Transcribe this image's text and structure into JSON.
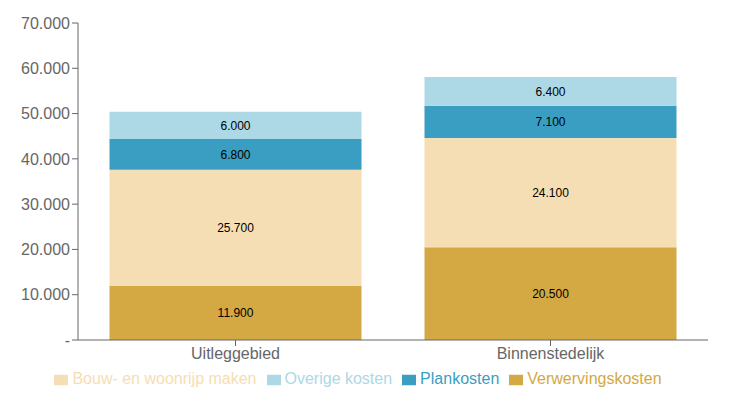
{
  "chart_data": {
    "type": "bar",
    "stacked": true,
    "data_labels": true,
    "grid": false,
    "legend": "bottom",
    "categories": [
      "Uitleggebied",
      "Binnenstedelijk"
    ],
    "series": [
      {
        "name": "Verwervingskosten",
        "color": "#D4A843",
        "values": [
          11900,
          20500
        ],
        "value_labels": [
          "11.900",
          "20.500"
        ]
      },
      {
        "name": "Bouw- en woonrijp maken",
        "color": "#F5DEB3",
        "values": [
          25700,
          24100
        ],
        "value_labels": [
          "25.700",
          "24.100"
        ]
      },
      {
        "name": "Plankosten",
        "color": "#3A9EC2",
        "values": [
          6800,
          7100
        ],
        "value_labels": [
          "6.800",
          "7.100"
        ]
      },
      {
        "name": "Overige kosten",
        "color": "#ADD8E6",
        "values": [
          6000,
          6400
        ],
        "value_labels": [
          "6.000",
          "6.400"
        ]
      }
    ],
    "ylim": [
      0,
      70000
    ],
    "yticks": [
      {
        "value": 0,
        "label": "-"
      },
      {
        "value": 10000,
        "label": "10.000"
      },
      {
        "value": 20000,
        "label": "20.000"
      },
      {
        "value": 30000,
        "label": "30.000"
      },
      {
        "value": 40000,
        "label": "40.000"
      },
      {
        "value": 50000,
        "label": "50.000"
      },
      {
        "value": 60000,
        "label": "60.000"
      },
      {
        "value": 70000,
        "label": "70.000"
      }
    ]
  }
}
